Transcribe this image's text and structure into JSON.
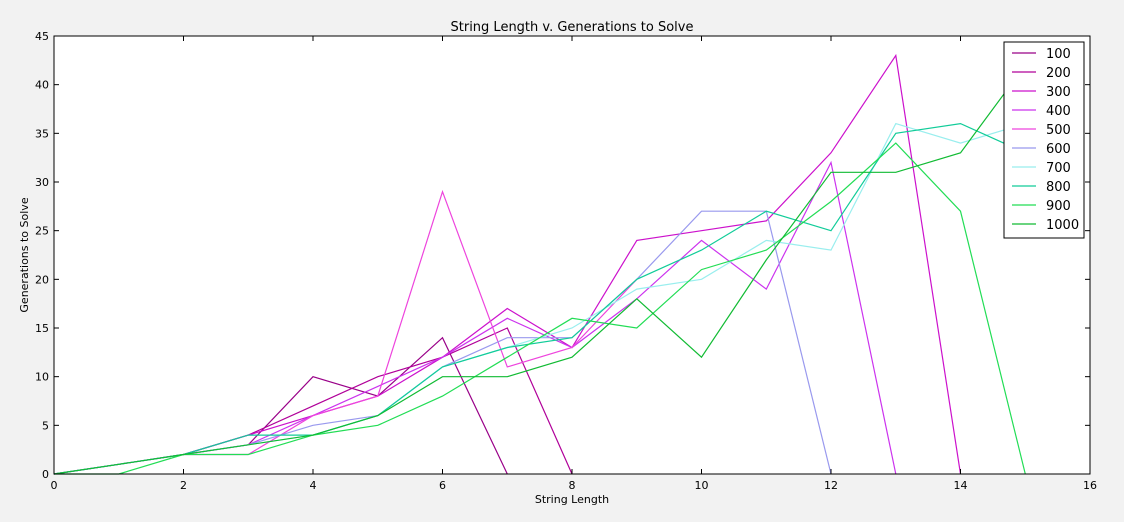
{
  "chart_data": {
    "type": "line",
    "title": "String Length v. Generations to Solve",
    "xlabel": "String Length",
    "ylabel": "Generations to Solve",
    "xlim": [
      0,
      16
    ],
    "ylim": [
      0,
      45
    ],
    "xticks": [
      0,
      2,
      4,
      6,
      8,
      10,
      12,
      14,
      16
    ],
    "yticks": [
      0,
      5,
      10,
      15,
      20,
      25,
      30,
      35,
      40,
      45
    ],
    "grid": false,
    "legend_position": "top-right",
    "series": [
      {
        "name": "100",
        "color": "#990088",
        "x": [
          0,
          1,
          2,
          3,
          4,
          5,
          6,
          7
        ],
        "y": [
          0,
          1,
          2,
          3,
          10,
          8,
          14,
          0
        ]
      },
      {
        "name": "200",
        "color": "#b00099",
        "x": [
          0,
          1,
          2,
          3,
          4,
          5,
          6,
          7,
          8
        ],
        "y": [
          0,
          1,
          2,
          4,
          7,
          10,
          12,
          15,
          0
        ]
      },
      {
        "name": "300",
        "color": "#cc11cc",
        "x": [
          0,
          1,
          2,
          3,
          4,
          5,
          6,
          7,
          8,
          9,
          10,
          11,
          12,
          13,
          14
        ],
        "y": [
          0,
          1,
          2,
          4,
          6,
          8,
          12,
          17,
          13,
          24,
          25,
          26,
          33,
          43,
          0
        ]
      },
      {
        "name": "400",
        "color": "#cc33ee",
        "x": [
          0,
          1,
          2,
          3,
          4,
          5,
          6,
          7,
          8,
          9,
          10,
          11,
          12,
          13
        ],
        "y": [
          0,
          1,
          2,
          3,
          6,
          9,
          12,
          16,
          13,
          18,
          24,
          19,
          32,
          0
        ]
      },
      {
        "name": "500",
        "color": "#ee44dd",
        "x": [
          0,
          1,
          2,
          3,
          4,
          5,
          6,
          7,
          8,
          9
        ],
        "y": [
          0,
          1,
          2,
          2,
          6,
          8,
          29,
          11,
          13,
          20
        ]
      },
      {
        "name": "600",
        "color": "#9999ee",
        "x": [
          0,
          1,
          2,
          3,
          4,
          5,
          6,
          7,
          8,
          9,
          10,
          11,
          12
        ],
        "y": [
          0,
          1,
          2,
          3,
          5,
          6,
          11,
          14,
          14,
          20,
          27,
          27,
          0
        ]
      },
      {
        "name": "700",
        "color": "#99eeee",
        "x": [
          0,
          1,
          2,
          3,
          4,
          5,
          6,
          7,
          8,
          9,
          10,
          11,
          12,
          13,
          14,
          15
        ],
        "y": [
          0,
          1,
          2,
          3,
          4,
          6,
          11,
          13,
          15,
          19,
          20,
          24,
          23,
          36,
          34,
          36
        ]
      },
      {
        "name": "800",
        "color": "#11cc99",
        "x": [
          0,
          1,
          2,
          3,
          4,
          5,
          6,
          7,
          8,
          9,
          10,
          11,
          12,
          13,
          14,
          15
        ],
        "y": [
          0,
          1,
          2,
          4,
          4,
          6,
          11,
          13,
          14,
          20,
          23,
          27,
          25,
          35,
          36,
          33
        ]
      },
      {
        "name": "900",
        "color": "#22dd55",
        "x": [
          0,
          1,
          2,
          3,
          4,
          5,
          6,
          7,
          8,
          9,
          10,
          11,
          12,
          13,
          14,
          15
        ],
        "y": [
          0,
          0,
          2,
          2,
          4,
          5,
          8,
          12,
          16,
          15,
          21,
          23,
          28,
          34,
          27,
          0
        ]
      },
      {
        "name": "1000",
        "color": "#11bb33",
        "x": [
          0,
          1,
          2,
          3,
          4,
          5,
          6,
          7,
          8,
          9,
          10,
          11,
          12,
          13,
          14,
          15
        ],
        "y": [
          0,
          1,
          2,
          3,
          4,
          6,
          10,
          10,
          12,
          18,
          12,
          22,
          31,
          31,
          33,
          42
        ]
      }
    ]
  }
}
